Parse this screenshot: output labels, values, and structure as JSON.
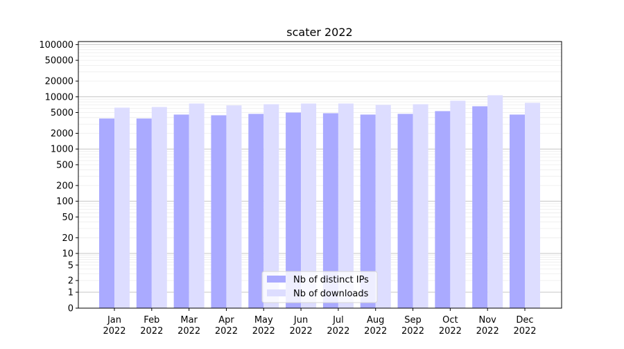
{
  "chart_data": {
    "type": "bar",
    "title": "scater 2022",
    "xlabel": "",
    "ylabel": "",
    "yscale": "symlog",
    "ylim": [
      0,
      120000
    ],
    "grid": true,
    "legend_placement": "bottom-center",
    "categories": [
      "Jan\n2022",
      "Feb\n2022",
      "Mar\n2022",
      "Apr\n2022",
      "May\n2022",
      "Jun\n2022",
      "Jul\n2022",
      "Aug\n2022",
      "Sep\n2022",
      "Oct\n2022",
      "Nov\n2022",
      "Dec\n2022"
    ],
    "yticks": [
      0,
      1,
      2,
      5,
      10,
      20,
      50,
      100,
      200,
      500,
      1000,
      2000,
      5000,
      10000,
      20000,
      50000,
      100000
    ],
    "series": [
      {
        "name": "Nb of distinct IPs",
        "color": "#aaaaff",
        "values": [
          3840,
          3840,
          4570,
          4430,
          4710,
          5000,
          4850,
          4570,
          4710,
          5320,
          6590,
          4570
        ]
      },
      {
        "name": "Nb of downloads",
        "color": "#ddddff",
        "values": [
          6200,
          6380,
          7440,
          6850,
          7220,
          7440,
          7440,
          7000,
          7220,
          8400,
          10700,
          7670
        ]
      }
    ]
  }
}
